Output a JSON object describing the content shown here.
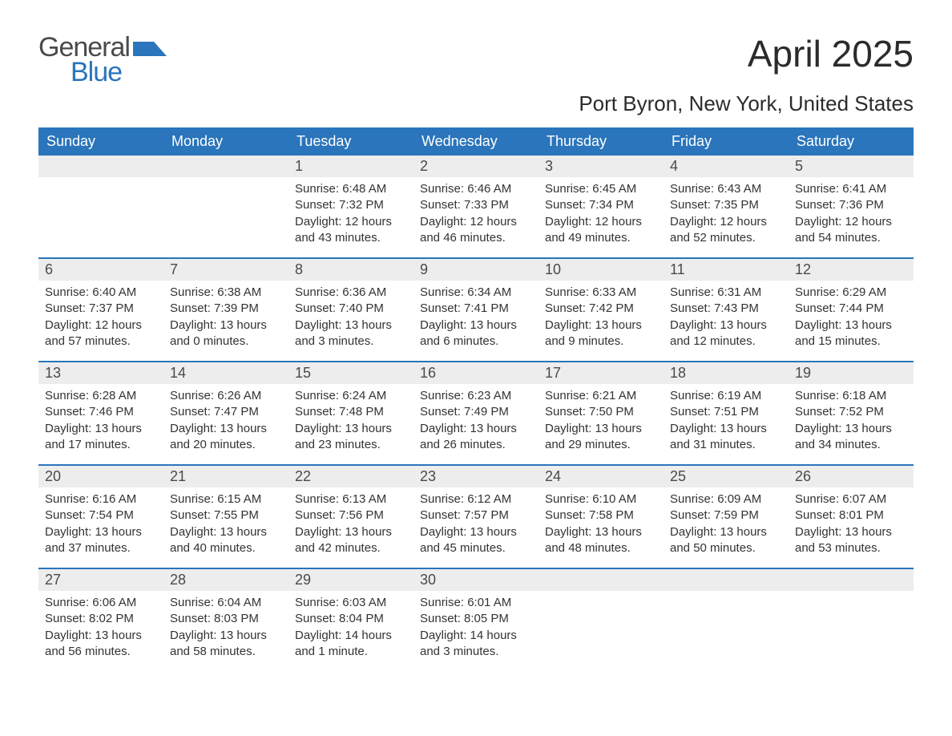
{
  "brand": {
    "word1": "General",
    "word2": "Blue",
    "logo_color": "#2a75bb",
    "text_gray": "#4a4a4a"
  },
  "header": {
    "month_title": "April 2025",
    "location": "Port Byron, New York, United States"
  },
  "style": {
    "header_bg": "#2a75bb",
    "header_fg": "#ffffff",
    "daynum_bg": "#ededed",
    "body_bg": "#ffffff",
    "text_color": "#333333",
    "sep_color": "#2a75bb"
  },
  "day_headers": [
    "Sunday",
    "Monday",
    "Tuesday",
    "Wednesday",
    "Thursday",
    "Friday",
    "Saturday"
  ],
  "weeks": [
    [
      null,
      null,
      {
        "n": "1",
        "sr": "Sunrise: 6:48 AM",
        "ss": "Sunset: 7:32 PM",
        "dl": "Daylight: 12 hours and 43 minutes."
      },
      {
        "n": "2",
        "sr": "Sunrise: 6:46 AM",
        "ss": "Sunset: 7:33 PM",
        "dl": "Daylight: 12 hours and 46 minutes."
      },
      {
        "n": "3",
        "sr": "Sunrise: 6:45 AM",
        "ss": "Sunset: 7:34 PM",
        "dl": "Daylight: 12 hours and 49 minutes."
      },
      {
        "n": "4",
        "sr": "Sunrise: 6:43 AM",
        "ss": "Sunset: 7:35 PM",
        "dl": "Daylight: 12 hours and 52 minutes."
      },
      {
        "n": "5",
        "sr": "Sunrise: 6:41 AM",
        "ss": "Sunset: 7:36 PM",
        "dl": "Daylight: 12 hours and 54 minutes."
      }
    ],
    [
      {
        "n": "6",
        "sr": "Sunrise: 6:40 AM",
        "ss": "Sunset: 7:37 PM",
        "dl": "Daylight: 12 hours and 57 minutes."
      },
      {
        "n": "7",
        "sr": "Sunrise: 6:38 AM",
        "ss": "Sunset: 7:39 PM",
        "dl": "Daylight: 13 hours and 0 minutes."
      },
      {
        "n": "8",
        "sr": "Sunrise: 6:36 AM",
        "ss": "Sunset: 7:40 PM",
        "dl": "Daylight: 13 hours and 3 minutes."
      },
      {
        "n": "9",
        "sr": "Sunrise: 6:34 AM",
        "ss": "Sunset: 7:41 PM",
        "dl": "Daylight: 13 hours and 6 minutes."
      },
      {
        "n": "10",
        "sr": "Sunrise: 6:33 AM",
        "ss": "Sunset: 7:42 PM",
        "dl": "Daylight: 13 hours and 9 minutes."
      },
      {
        "n": "11",
        "sr": "Sunrise: 6:31 AM",
        "ss": "Sunset: 7:43 PM",
        "dl": "Daylight: 13 hours and 12 minutes."
      },
      {
        "n": "12",
        "sr": "Sunrise: 6:29 AM",
        "ss": "Sunset: 7:44 PM",
        "dl": "Daylight: 13 hours and 15 minutes."
      }
    ],
    [
      {
        "n": "13",
        "sr": "Sunrise: 6:28 AM",
        "ss": "Sunset: 7:46 PM",
        "dl": "Daylight: 13 hours and 17 minutes."
      },
      {
        "n": "14",
        "sr": "Sunrise: 6:26 AM",
        "ss": "Sunset: 7:47 PM",
        "dl": "Daylight: 13 hours and 20 minutes."
      },
      {
        "n": "15",
        "sr": "Sunrise: 6:24 AM",
        "ss": "Sunset: 7:48 PM",
        "dl": "Daylight: 13 hours and 23 minutes."
      },
      {
        "n": "16",
        "sr": "Sunrise: 6:23 AM",
        "ss": "Sunset: 7:49 PM",
        "dl": "Daylight: 13 hours and 26 minutes."
      },
      {
        "n": "17",
        "sr": "Sunrise: 6:21 AM",
        "ss": "Sunset: 7:50 PM",
        "dl": "Daylight: 13 hours and 29 minutes."
      },
      {
        "n": "18",
        "sr": "Sunrise: 6:19 AM",
        "ss": "Sunset: 7:51 PM",
        "dl": "Daylight: 13 hours and 31 minutes."
      },
      {
        "n": "19",
        "sr": "Sunrise: 6:18 AM",
        "ss": "Sunset: 7:52 PM",
        "dl": "Daylight: 13 hours and 34 minutes."
      }
    ],
    [
      {
        "n": "20",
        "sr": "Sunrise: 6:16 AM",
        "ss": "Sunset: 7:54 PM",
        "dl": "Daylight: 13 hours and 37 minutes."
      },
      {
        "n": "21",
        "sr": "Sunrise: 6:15 AM",
        "ss": "Sunset: 7:55 PM",
        "dl": "Daylight: 13 hours and 40 minutes."
      },
      {
        "n": "22",
        "sr": "Sunrise: 6:13 AM",
        "ss": "Sunset: 7:56 PM",
        "dl": "Daylight: 13 hours and 42 minutes."
      },
      {
        "n": "23",
        "sr": "Sunrise: 6:12 AM",
        "ss": "Sunset: 7:57 PM",
        "dl": "Daylight: 13 hours and 45 minutes."
      },
      {
        "n": "24",
        "sr": "Sunrise: 6:10 AM",
        "ss": "Sunset: 7:58 PM",
        "dl": "Daylight: 13 hours and 48 minutes."
      },
      {
        "n": "25",
        "sr": "Sunrise: 6:09 AM",
        "ss": "Sunset: 7:59 PM",
        "dl": "Daylight: 13 hours and 50 minutes."
      },
      {
        "n": "26",
        "sr": "Sunrise: 6:07 AM",
        "ss": "Sunset: 8:01 PM",
        "dl": "Daylight: 13 hours and 53 minutes."
      }
    ],
    [
      {
        "n": "27",
        "sr": "Sunrise: 6:06 AM",
        "ss": "Sunset: 8:02 PM",
        "dl": "Daylight: 13 hours and 56 minutes."
      },
      {
        "n": "28",
        "sr": "Sunrise: 6:04 AM",
        "ss": "Sunset: 8:03 PM",
        "dl": "Daylight: 13 hours and 58 minutes."
      },
      {
        "n": "29",
        "sr": "Sunrise: 6:03 AM",
        "ss": "Sunset: 8:04 PM",
        "dl": "Daylight: 14 hours and 1 minute."
      },
      {
        "n": "30",
        "sr": "Sunrise: 6:01 AM",
        "ss": "Sunset: 8:05 PM",
        "dl": "Daylight: 14 hours and 3 minutes."
      },
      null,
      null,
      null
    ]
  ]
}
